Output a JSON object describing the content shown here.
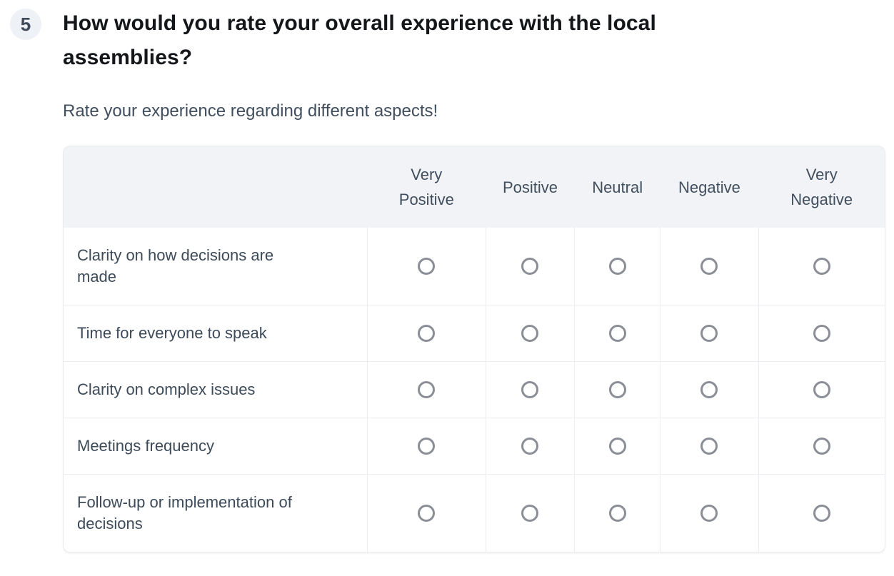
{
  "question": {
    "number": "5",
    "title": "How would you rate your overall experience with the local assemblies?",
    "subtitle": "Rate your experience regarding different aspects!"
  },
  "matrix": {
    "columns": [
      "Very Positive",
      "Positive",
      "Neutral",
      "Negative",
      "Very Negative"
    ],
    "rows": [
      "Clarity on how decisions are made",
      "Time for everyone to speak",
      "Clarity on complex issues",
      "Meetings frequency",
      "Follow-up or implementation of decisions"
    ],
    "selected": null,
    "radio_state": "unselected"
  },
  "colors": {
    "header_bg": "#f1f3f6",
    "table_border": "#e9ebef",
    "cell_divider": "#ececf1",
    "title_text": "#141619",
    "slate_text": "#404e5d",
    "radio_border": "#8b8d97",
    "badge_bg": "#eef1f6",
    "badge_text": "#3e4a5a"
  }
}
